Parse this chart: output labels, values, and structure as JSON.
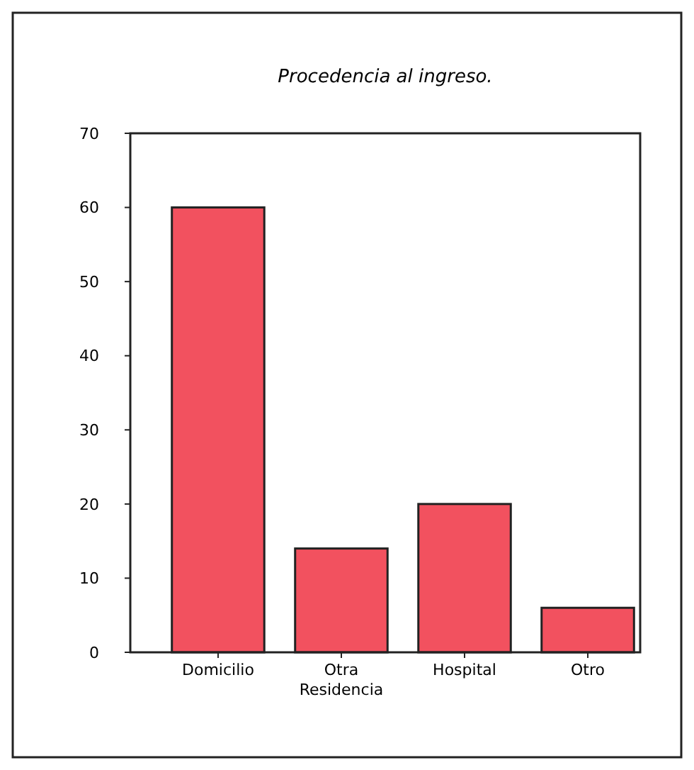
{
  "chart_data": {
    "type": "bar",
    "title": "Procedencia al ingreso.",
    "categories": [
      "Domicilio",
      "Otra Residencia",
      "Hospital",
      "Otro"
    ],
    "values": [
      60,
      14,
      20,
      6
    ],
    "color": "#f2515f",
    "ylim": [
      0,
      70
    ],
    "yticks": [
      0,
      10,
      20,
      30,
      40,
      50,
      60,
      70
    ],
    "grid": false
  }
}
